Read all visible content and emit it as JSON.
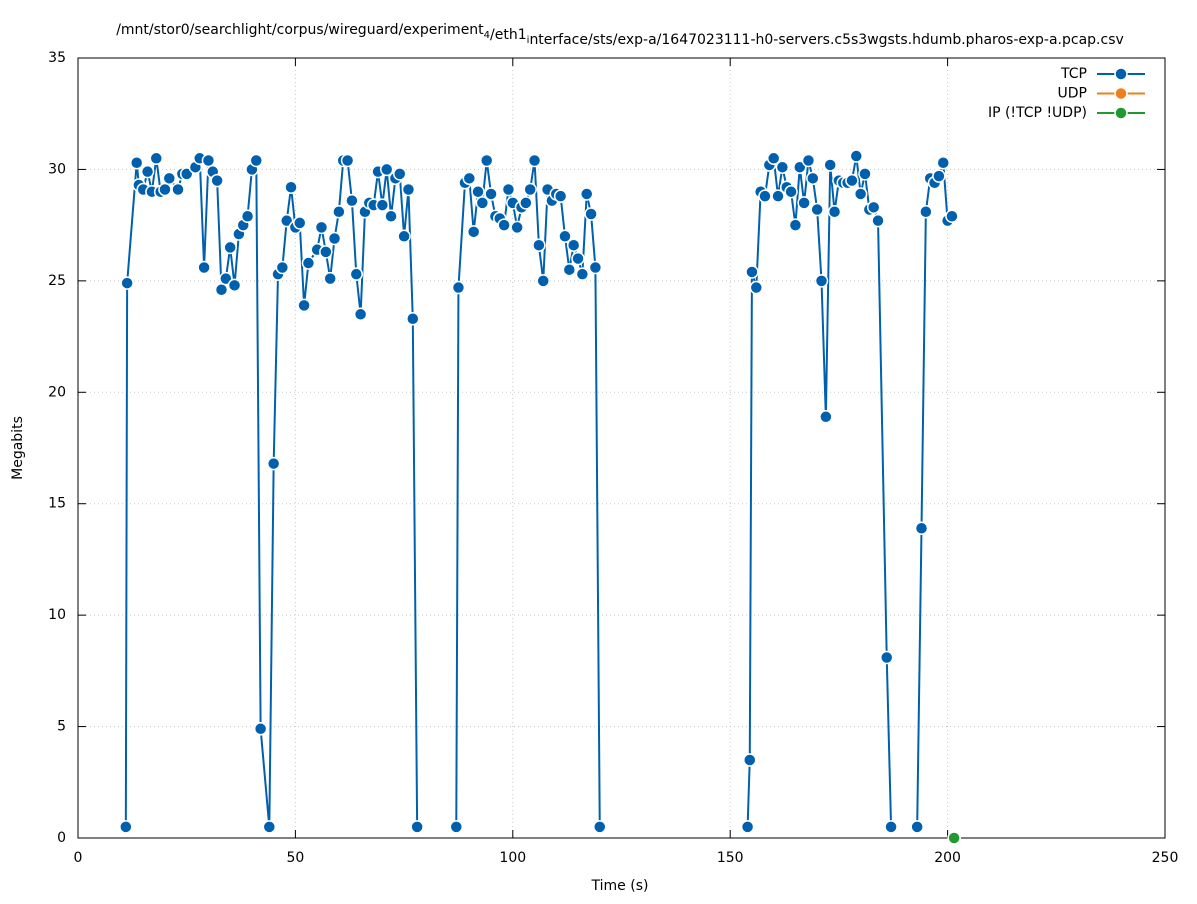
{
  "chart_data": {
    "type": "line",
    "title": "/mnt/stor0/searchlight/corpus/wireguard/experiment_4/eth1_interface/sts/exp-a/1647023111-h0-servers.c5s3wgsts.hdumb.pharos-exp-a.pcap.csv",
    "x_label": "Time (s)",
    "y_label": "Megabits",
    "xlim": [
      0,
      250
    ],
    "xticks": [
      0,
      50,
      100,
      150,
      200,
      250
    ],
    "ylim": [
      0,
      35
    ],
    "yticks": [
      0,
      5,
      10,
      15,
      20,
      25,
      30,
      35
    ],
    "grid": true,
    "legend": "top-right",
    "series": [
      {
        "name": "TCP",
        "color": "#0060ad",
        "x": [
          11,
          11.3,
          13.5,
          14,
          15,
          16,
          17,
          18,
          19,
          20,
          21,
          23,
          24,
          25,
          27,
          28,
          29,
          30,
          31,
          32,
          33,
          34,
          35,
          36,
          37,
          38,
          39,
          40,
          41,
          42,
          44,
          45,
          46,
          47,
          48,
          49,
          50,
          51,
          52,
          53,
          55,
          56,
          57,
          58,
          59,
          60,
          61,
          62,
          63,
          64,
          65,
          66,
          67,
          68,
          69,
          70,
          71,
          72,
          73,
          74,
          75,
          76,
          77,
          78,
          82,
          87,
          87.5,
          89,
          90,
          91,
          92,
          93,
          94,
          95,
          96,
          97,
          98,
          99,
          100,
          101,
          102,
          103,
          104,
          105,
          106,
          107,
          108,
          109,
          110,
          111,
          112,
          113,
          114,
          115,
          116,
          117,
          118,
          119,
          120,
          137,
          154,
          154.5,
          155,
          156,
          157,
          158,
          159,
          160,
          161,
          162,
          163,
          164,
          165,
          166,
          167,
          168,
          169,
          170,
          171,
          172,
          173,
          174,
          175,
          176,
          177,
          178,
          179,
          180,
          181,
          182,
          183,
          184,
          186,
          187,
          190,
          193,
          194,
          195,
          196,
          197,
          198,
          199,
          200,
          201
        ],
        "values": [
          0.5,
          24.9,
          30.3,
          29.3,
          29.1,
          29.9,
          29.0,
          30.5,
          29.0,
          29.1,
          29.6,
          29.1,
          29.8,
          29.8,
          30.1,
          30.5,
          25.6,
          30.4,
          29.9,
          29.5,
          24.6,
          25.1,
          26.5,
          24.8,
          27.1,
          27.5,
          27.9,
          30.0,
          30.4,
          4.9,
          0.5,
          16.8,
          25.3,
          25.6,
          27.7,
          29.2,
          27.4,
          27.6,
          23.9,
          25.8,
          26.4,
          27.4,
          26.3,
          25.1,
          26.9,
          28.1,
          30.4,
          30.4,
          28.6,
          25.3,
          23.5,
          28.1,
          28.5,
          28.4,
          29.9,
          28.4,
          30.0,
          27.9,
          29.6,
          29.8,
          27.0,
          29.1,
          23.3,
          0.5,
          null,
          0.5,
          24.7,
          29.4,
          29.6,
          27.2,
          29.0,
          28.5,
          30.4,
          28.9,
          27.9,
          27.8,
          27.5,
          29.1,
          28.5,
          27.4,
          28.3,
          28.5,
          29.1,
          30.4,
          26.6,
          25.0,
          29.1,
          28.6,
          28.9,
          28.8,
          27.0,
          25.5,
          26.6,
          26.0,
          25.3,
          28.9,
          28.0,
          25.6,
          0.5,
          null,
          0.5,
          3.5,
          25.4,
          24.7,
          29.0,
          28.8,
          30.2,
          30.5,
          28.8,
          30.1,
          29.2,
          29.0,
          27.5,
          30.1,
          28.5,
          30.4,
          29.6,
          28.2,
          25.0,
          18.9,
          30.2,
          28.1,
          29.5,
          29.4,
          29.4,
          29.5,
          30.6,
          28.9,
          29.8,
          28.2,
          28.3,
          27.7,
          8.1,
          0.5,
          null,
          0.5,
          13.9,
          28.1,
          29.6,
          29.4,
          29.7,
          30.3,
          27.7,
          27.9
        ]
      },
      {
        "name": "UDP",
        "color": "#ef7f1a",
        "x": [
          201.5
        ],
        "values": [
          0
        ]
      },
      {
        "name": "IP (!TCP  !UDP)",
        "color": "#209a30",
        "x": [
          201.5
        ],
        "values": [
          0
        ]
      }
    ]
  }
}
